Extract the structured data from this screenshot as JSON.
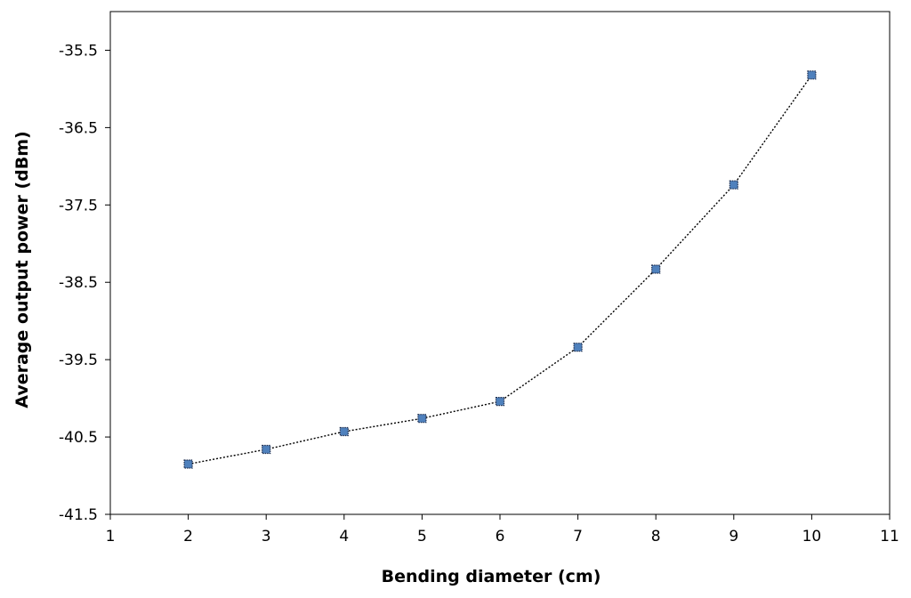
{
  "chart_data": {
    "type": "line",
    "xlabel": "Bending diameter (cm)",
    "ylabel": "Average output  power (dBm)",
    "xlim": [
      1,
      11
    ],
    "ylim": [
      -41.5,
      -35
    ],
    "xticks": [
      1,
      2,
      3,
      4,
      5,
      6,
      7,
      8,
      9,
      10,
      11
    ],
    "yticks": [
      -41.5,
      -40.5,
      -39.5,
      -38.5,
      -37.5,
      -36.5,
      -35.5
    ],
    "xtick_labels": [
      "1",
      "2",
      "3",
      "4",
      "5",
      "6",
      "7",
      "8",
      "9",
      "10",
      "11"
    ],
    "ytick_labels": [
      "-41.5",
      "-40.5",
      "-39.5",
      "-38.5",
      "-37.5",
      "-36.5",
      "-35.5"
    ],
    "grid": false,
    "series": [
      {
        "x": [
          2,
          3,
          4,
          5,
          6,
          7,
          8,
          9,
          10
        ],
        "values": [
          -40.85,
          -40.66,
          -40.43,
          -40.26,
          -40.04,
          -39.34,
          -38.33,
          -37.24,
          -35.82
        ],
        "color": "#4F81BD",
        "line_style": "dotted",
        "line_color": "#000000",
        "marker": "square"
      }
    ]
  }
}
